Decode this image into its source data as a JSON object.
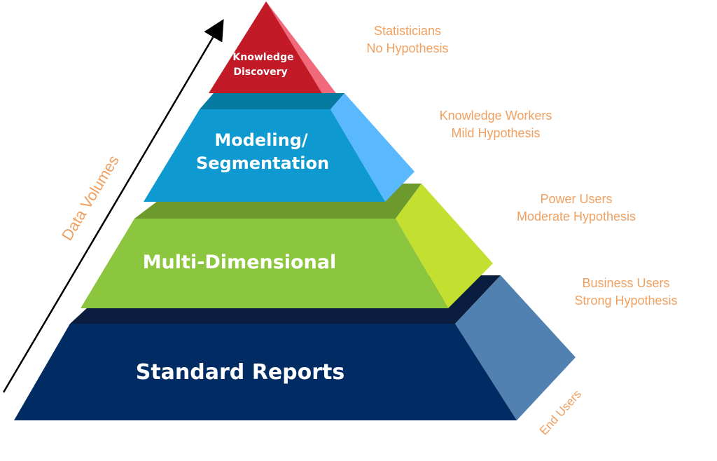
{
  "levels": {
    "top": {
      "line1": "Knowledge",
      "line2": "Discovery",
      "color": "#c31a27"
    },
    "modeling": {
      "line1": "Modeling/",
      "line2": "Segmentation",
      "color": "#0e9ad0"
    },
    "multi": {
      "label": "Multi-Dimensional",
      "color": "#8cc63f"
    },
    "standard": {
      "label": "Standard Reports",
      "color": "#002b63"
    }
  },
  "audiences": [
    {
      "line1": "Statisticians",
      "line2": "No Hypothesis"
    },
    {
      "line1": "Knowledge Workers",
      "line2": "Mild Hypothesis"
    },
    {
      "line1": "Power Users",
      "line2": "Moderate Hypothesis"
    },
    {
      "line1": "Business Users",
      "line2": "Strong Hypothesis"
    }
  ],
  "axis_label": "Data Volumes",
  "end_users_label": "End Users",
  "colors": {
    "annotation": "#f0a060",
    "arrow": "#000000"
  }
}
